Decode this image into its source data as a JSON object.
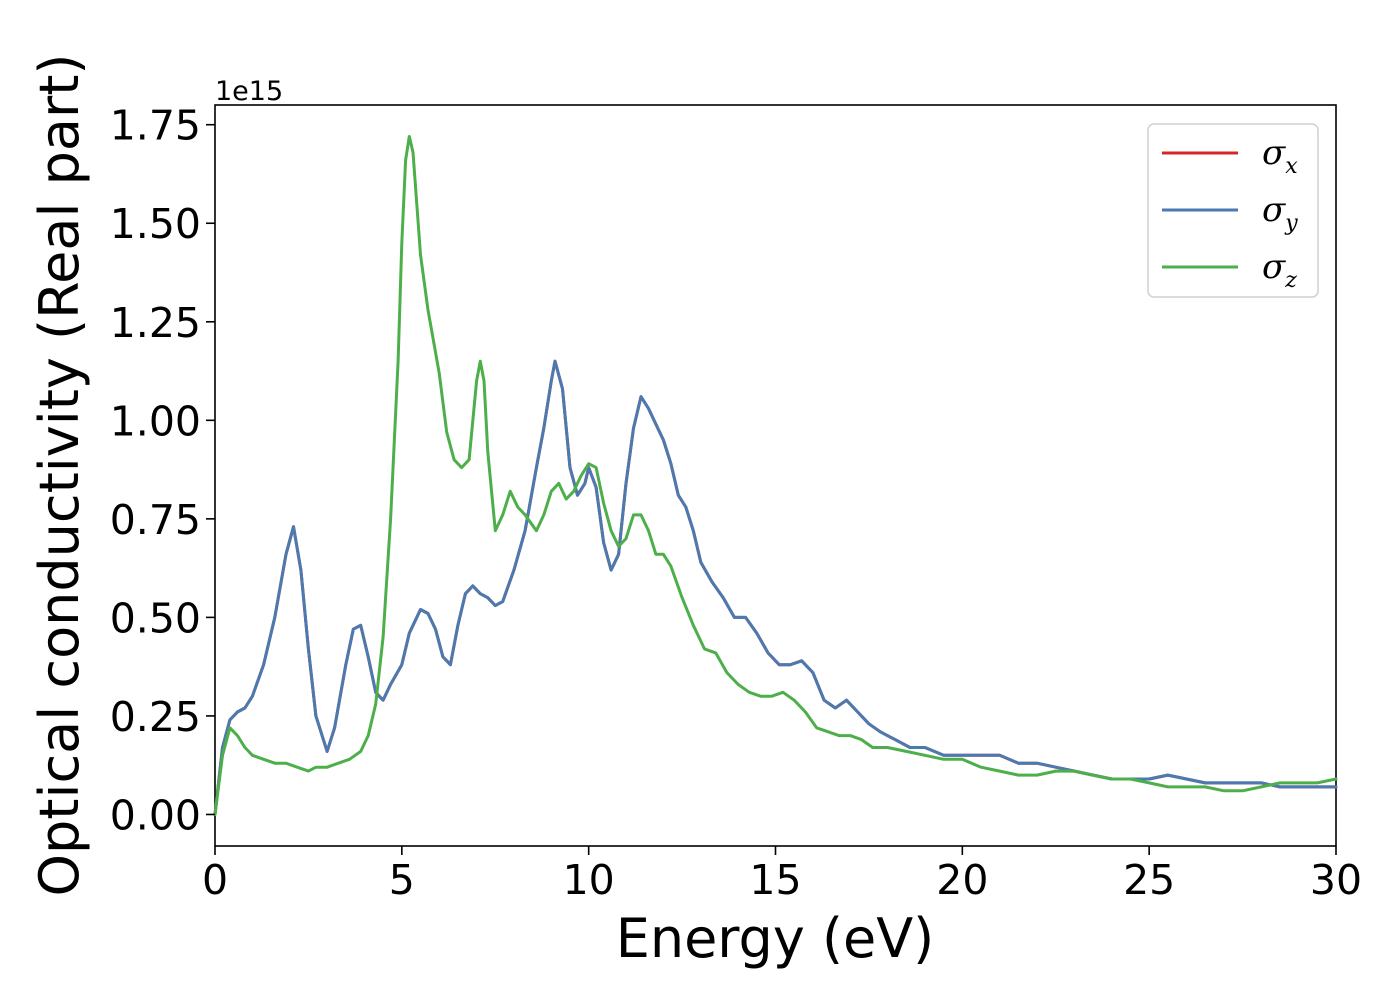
{
  "chart_data": {
    "type": "line",
    "title": "",
    "xlabel": "Energy (eV)",
    "ylabel": "Optical conductivity (Real part)",
    "y_offset_label": "1e15",
    "xlim": [
      0,
      30
    ],
    "ylim": [
      -0.08,
      1.8
    ],
    "xticks": [
      0,
      5,
      10,
      15,
      20,
      25,
      30
    ],
    "xtick_labels": [
      "0",
      "5",
      "10",
      "15",
      "20",
      "25",
      "30"
    ],
    "yticks": [
      0,
      0.25,
      0.5,
      0.75,
      1.0,
      1.25,
      1.5,
      1.75
    ],
    "ytick_labels": [
      "0.00",
      "0.25",
      "0.50",
      "0.75",
      "1.00",
      "1.25",
      "1.50",
      "1.75"
    ],
    "grid": false,
    "legend_position": "top-right",
    "series": [
      {
        "name": "σx",
        "symbol": "σ",
        "sub": "x",
        "color": "#d62728",
        "x": [
          0,
          0.2,
          0.4,
          0.6,
          0.8,
          1.0,
          1.3,
          1.6,
          1.9,
          2.1,
          2.3,
          2.5,
          2.7,
          3.0,
          3.2,
          3.5,
          3.7,
          3.9,
          4.1,
          4.3,
          4.5,
          4.7,
          5.0,
          5.2,
          5.5,
          5.7,
          5.9,
          6.1,
          6.3,
          6.5,
          6.7,
          6.9,
          7.1,
          7.3,
          7.5,
          7.7,
          8.0,
          8.3,
          8.6,
          8.8,
          9.0,
          9.1,
          9.3,
          9.5,
          9.7,
          9.9,
          10.0,
          10.2,
          10.4,
          10.6,
          10.8,
          11.0,
          11.2,
          11.4,
          11.6,
          11.8,
          12.0,
          12.2,
          12.4,
          12.6,
          12.8,
          13.0,
          13.3,
          13.6,
          13.9,
          14.2,
          14.5,
          14.8,
          15.1,
          15.4,
          15.7,
          16.0,
          16.3,
          16.6,
          16.9,
          17.2,
          17.5,
          17.8,
          18.2,
          18.6,
          19.0,
          19.5,
          20.0,
          20.5,
          21.0,
          21.5,
          22.0,
          22.5,
          23.0,
          23.5,
          24.0,
          24.5,
          25.0,
          25.5,
          26.0,
          26.5,
          27.0,
          27.5,
          28.0,
          28.5,
          29.0,
          29.5,
          30.0
        ],
        "values": [
          0.0,
          0.17,
          0.24,
          0.26,
          0.27,
          0.3,
          0.38,
          0.5,
          0.66,
          0.73,
          0.62,
          0.42,
          0.25,
          0.16,
          0.22,
          0.38,
          0.47,
          0.48,
          0.4,
          0.31,
          0.29,
          0.33,
          0.38,
          0.46,
          0.52,
          0.51,
          0.47,
          0.4,
          0.38,
          0.48,
          0.56,
          0.58,
          0.56,
          0.55,
          0.53,
          0.54,
          0.62,
          0.72,
          0.88,
          0.98,
          1.1,
          1.15,
          1.08,
          0.88,
          0.81,
          0.84,
          0.88,
          0.83,
          0.69,
          0.62,
          0.66,
          0.84,
          0.98,
          1.06,
          1.03,
          0.99,
          0.95,
          0.89,
          0.81,
          0.78,
          0.72,
          0.64,
          0.59,
          0.55,
          0.5,
          0.5,
          0.46,
          0.41,
          0.38,
          0.38,
          0.39,
          0.36,
          0.29,
          0.27,
          0.29,
          0.26,
          0.23,
          0.21,
          0.19,
          0.17,
          0.17,
          0.15,
          0.15,
          0.15,
          0.15,
          0.13,
          0.13,
          0.12,
          0.11,
          0.1,
          0.09,
          0.09,
          0.09,
          0.1,
          0.09,
          0.08,
          0.08,
          0.08,
          0.08,
          0.07,
          0.07,
          0.07,
          0.07
        ]
      },
      {
        "name": "σy",
        "symbol": "σ",
        "sub": "y",
        "color": "#4a7ab0",
        "x": [
          0,
          0.2,
          0.4,
          0.6,
          0.8,
          1.0,
          1.3,
          1.6,
          1.9,
          2.1,
          2.3,
          2.5,
          2.7,
          3.0,
          3.2,
          3.5,
          3.7,
          3.9,
          4.1,
          4.3,
          4.5,
          4.7,
          5.0,
          5.2,
          5.5,
          5.7,
          5.9,
          6.1,
          6.3,
          6.5,
          6.7,
          6.9,
          7.1,
          7.3,
          7.5,
          7.7,
          8.0,
          8.3,
          8.6,
          8.8,
          9.0,
          9.1,
          9.3,
          9.5,
          9.7,
          9.9,
          10.0,
          10.2,
          10.4,
          10.6,
          10.8,
          11.0,
          11.2,
          11.4,
          11.6,
          11.8,
          12.0,
          12.2,
          12.4,
          12.6,
          12.8,
          13.0,
          13.3,
          13.6,
          13.9,
          14.2,
          14.5,
          14.8,
          15.1,
          15.4,
          15.7,
          16.0,
          16.3,
          16.6,
          16.9,
          17.2,
          17.5,
          17.8,
          18.2,
          18.6,
          19.0,
          19.5,
          20.0,
          20.5,
          21.0,
          21.5,
          22.0,
          22.5,
          23.0,
          23.5,
          24.0,
          24.5,
          25.0,
          25.5,
          26.0,
          26.5,
          27.0,
          27.5,
          28.0,
          28.5,
          29.0,
          29.5,
          30.0
        ],
        "values": [
          0.0,
          0.17,
          0.24,
          0.26,
          0.27,
          0.3,
          0.38,
          0.5,
          0.66,
          0.73,
          0.62,
          0.42,
          0.25,
          0.16,
          0.22,
          0.38,
          0.47,
          0.48,
          0.4,
          0.31,
          0.29,
          0.33,
          0.38,
          0.46,
          0.52,
          0.51,
          0.47,
          0.4,
          0.38,
          0.48,
          0.56,
          0.58,
          0.56,
          0.55,
          0.53,
          0.54,
          0.62,
          0.72,
          0.88,
          0.98,
          1.1,
          1.15,
          1.08,
          0.88,
          0.81,
          0.84,
          0.88,
          0.83,
          0.69,
          0.62,
          0.66,
          0.84,
          0.98,
          1.06,
          1.03,
          0.99,
          0.95,
          0.89,
          0.81,
          0.78,
          0.72,
          0.64,
          0.59,
          0.55,
          0.5,
          0.5,
          0.46,
          0.41,
          0.38,
          0.38,
          0.39,
          0.36,
          0.29,
          0.27,
          0.29,
          0.26,
          0.23,
          0.21,
          0.19,
          0.17,
          0.17,
          0.15,
          0.15,
          0.15,
          0.15,
          0.13,
          0.13,
          0.12,
          0.11,
          0.1,
          0.09,
          0.09,
          0.09,
          0.1,
          0.09,
          0.08,
          0.08,
          0.08,
          0.08,
          0.07,
          0.07,
          0.07,
          0.07
        ]
      },
      {
        "name": "σz",
        "symbol": "σ",
        "sub": "z",
        "color": "#4daf4a",
        "x": [
          0,
          0.2,
          0.4,
          0.6,
          0.8,
          1.0,
          1.3,
          1.6,
          1.9,
          2.2,
          2.5,
          2.7,
          3.0,
          3.3,
          3.6,
          3.9,
          4.1,
          4.3,
          4.5,
          4.7,
          4.9,
          5.0,
          5.1,
          5.2,
          5.3,
          5.5,
          5.7,
          6.0,
          6.2,
          6.4,
          6.6,
          6.8,
          7.0,
          7.1,
          7.2,
          7.3,
          7.5,
          7.7,
          7.9,
          8.1,
          8.3,
          8.6,
          8.8,
          9.0,
          9.2,
          9.4,
          9.6,
          9.8,
          10.0,
          10.2,
          10.4,
          10.6,
          10.8,
          11.0,
          11.2,
          11.4,
          11.6,
          11.8,
          12.0,
          12.2,
          12.5,
          12.8,
          13.1,
          13.4,
          13.7,
          14.0,
          14.3,
          14.6,
          14.9,
          15.2,
          15.5,
          15.8,
          16.1,
          16.4,
          16.7,
          17.0,
          17.3,
          17.6,
          18.0,
          18.5,
          19.0,
          19.5,
          20.0,
          20.5,
          21.0,
          21.5,
          22.0,
          22.5,
          23.0,
          23.5,
          24.0,
          24.5,
          25.0,
          25.5,
          26.0,
          26.5,
          27.0,
          27.5,
          28.0,
          28.5,
          29.0,
          29.5,
          30.0
        ],
        "values": [
          0.0,
          0.15,
          0.22,
          0.2,
          0.17,
          0.15,
          0.14,
          0.13,
          0.13,
          0.12,
          0.11,
          0.12,
          0.12,
          0.13,
          0.14,
          0.16,
          0.2,
          0.28,
          0.45,
          0.75,
          1.15,
          1.45,
          1.66,
          1.72,
          1.68,
          1.42,
          1.28,
          1.12,
          0.97,
          0.9,
          0.88,
          0.9,
          1.1,
          1.15,
          1.1,
          0.92,
          0.72,
          0.76,
          0.82,
          0.78,
          0.76,
          0.72,
          0.76,
          0.82,
          0.84,
          0.8,
          0.82,
          0.86,
          0.89,
          0.88,
          0.79,
          0.72,
          0.68,
          0.7,
          0.76,
          0.76,
          0.72,
          0.66,
          0.66,
          0.63,
          0.55,
          0.48,
          0.42,
          0.41,
          0.36,
          0.33,
          0.31,
          0.3,
          0.3,
          0.31,
          0.29,
          0.26,
          0.22,
          0.21,
          0.2,
          0.2,
          0.19,
          0.17,
          0.17,
          0.16,
          0.15,
          0.14,
          0.14,
          0.12,
          0.11,
          0.1,
          0.1,
          0.11,
          0.11,
          0.1,
          0.09,
          0.09,
          0.08,
          0.07,
          0.07,
          0.07,
          0.06,
          0.06,
          0.07,
          0.08,
          0.08,
          0.08,
          0.09
        ]
      }
    ]
  }
}
